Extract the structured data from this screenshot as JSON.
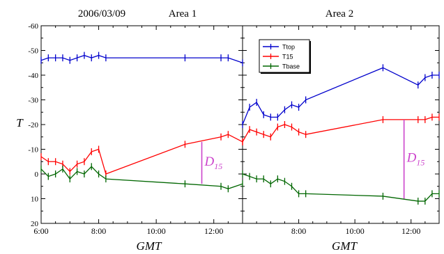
{
  "chart_data": [
    {
      "type": "line",
      "date_label": "2006/03/09",
      "title": "Area 1",
      "xlabel": "GMT",
      "ylabel": "T",
      "x_range": [
        "6:00",
        "13:00"
      ],
      "ylim": [
        -60,
        20
      ],
      "y_inverted": true,
      "x_ticks": [
        "6:00",
        "8:00",
        "10:00",
        "12:00"
      ],
      "y_ticks": [
        -60,
        -50,
        -40,
        -30,
        -20,
        -10,
        0,
        10,
        20
      ],
      "grid": false,
      "legend": "none",
      "series": [
        {
          "name": "Ttop",
          "color": "#0000cc",
          "points": [
            [
              "6:00",
              -46
            ],
            [
              "6:15",
              -47
            ],
            [
              "6:30",
              -47
            ],
            [
              "6:45",
              -47
            ],
            [
              "7:00",
              -46
            ],
            [
              "7:15",
              -47
            ],
            [
              "7:30",
              -48
            ],
            [
              "7:45",
              -47
            ],
            [
              "8:00",
              -48
            ],
            [
              "8:15",
              -47
            ],
            [
              "11:00",
              -47
            ],
            [
              "12:15",
              -47
            ],
            [
              "12:30",
              -47
            ],
            [
              "13:00",
              -45
            ]
          ]
        },
        {
          "name": "T15",
          "color": "#ff0000",
          "points": [
            [
              "6:00",
              -7
            ],
            [
              "6:15",
              -5
            ],
            [
              "6:30",
              -5
            ],
            [
              "6:45",
              -4
            ],
            [
              "7:00",
              -1
            ],
            [
              "7:15",
              -4
            ],
            [
              "7:30",
              -5
            ],
            [
              "7:45",
              -9
            ],
            [
              "8:00",
              -10
            ],
            [
              "8:15",
              0
            ],
            [
              "11:00",
              -12
            ],
            [
              "12:15",
              -15
            ],
            [
              "12:30",
              -16
            ],
            [
              "13:00",
              -13
            ]
          ]
        },
        {
          "name": "Tbase",
          "color": "#006600",
          "points": [
            [
              "6:00",
              -2
            ],
            [
              "6:15",
              1
            ],
            [
              "6:30",
              0
            ],
            [
              "6:45",
              -2
            ],
            [
              "7:00",
              2
            ],
            [
              "7:15",
              -1
            ],
            [
              "7:30",
              0
            ],
            [
              "7:45",
              -3
            ],
            [
              "8:00",
              0
            ],
            [
              "8:15",
              2
            ],
            [
              "11:00",
              4
            ],
            [
              "12:15",
              5
            ],
            [
              "12:30",
              6
            ],
            [
              "13:00",
              4
            ]
          ]
        }
      ],
      "annotation": {
        "label": "D",
        "subscript": "15",
        "time": "11:35",
        "from": -13,
        "to": 4,
        "color": "#cc44cc"
      }
    },
    {
      "type": "line",
      "title": "Area 2",
      "xlabel": "GMT",
      "x_range": [
        "6:00",
        "13:00"
      ],
      "ylim": [
        -60,
        20
      ],
      "y_inverted": true,
      "x_ticks": [
        "8:00",
        "10:00",
        "12:00"
      ],
      "grid": false,
      "legend": "top-left",
      "series": [
        {
          "name": "Ttop",
          "color": "#0000cc",
          "points": [
            [
              "6:00",
              -20
            ],
            [
              "6:15",
              -27
            ],
            [
              "6:30",
              -29
            ],
            [
              "6:45",
              -24
            ],
            [
              "7:00",
              -23
            ],
            [
              "7:15",
              -23
            ],
            [
              "7:30",
              -26
            ],
            [
              "7:45",
              -28
            ],
            [
              "8:00",
              -27
            ],
            [
              "8:15",
              -30
            ],
            [
              "11:00",
              -43
            ],
            [
              "12:15",
              -36
            ],
            [
              "12:30",
              -39
            ],
            [
              "12:45",
              -40
            ],
            [
              "13:00",
              -40
            ]
          ]
        },
        {
          "name": "T15",
          "color": "#ff0000",
          "points": [
            [
              "6:00",
              -13
            ],
            [
              "6:15",
              -18
            ],
            [
              "6:30",
              -17
            ],
            [
              "6:45",
              -16
            ],
            [
              "7:00",
              -15
            ],
            [
              "7:15",
              -19
            ],
            [
              "7:30",
              -20
            ],
            [
              "7:45",
              -19
            ],
            [
              "8:00",
              -17
            ],
            [
              "8:15",
              -16
            ],
            [
              "11:00",
              -22
            ],
            [
              "12:15",
              -22
            ],
            [
              "12:30",
              -22
            ],
            [
              "12:45",
              -23
            ],
            [
              "13:00",
              -23
            ]
          ]
        },
        {
          "name": "Tbase",
          "color": "#006600",
          "points": [
            [
              "6:00",
              0
            ],
            [
              "6:15",
              1
            ],
            [
              "6:30",
              2
            ],
            [
              "6:45",
              2
            ],
            [
              "7:00",
              4
            ],
            [
              "7:15",
              2
            ],
            [
              "7:30",
              3
            ],
            [
              "7:45",
              5
            ],
            [
              "8:00",
              8
            ],
            [
              "8:15",
              8
            ],
            [
              "11:00",
              9
            ],
            [
              "12:15",
              11
            ],
            [
              "12:30",
              11
            ],
            [
              "12:45",
              8
            ],
            [
              "13:00",
              8
            ]
          ]
        }
      ],
      "annotation": {
        "label": "D",
        "subscript": "15",
        "time": "11:45",
        "from": -22,
        "to": 10,
        "color": "#cc44cc"
      }
    }
  ]
}
